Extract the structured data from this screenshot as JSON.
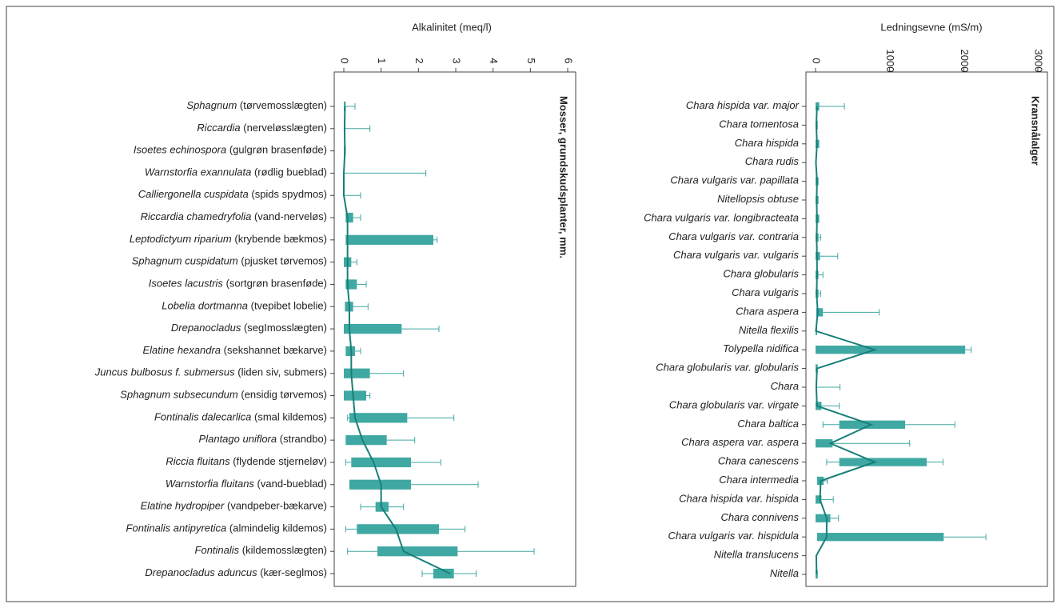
{
  "chart_data": [
    {
      "type": "range_bar",
      "axis_label": "Alkalinitet (meq/l)",
      "panel_label": "Mosser, grundskudsplanter, mm.",
      "color": "#3fa8a2",
      "line_color": "#17807a",
      "xlim": [
        0,
        6
      ],
      "xticks": [
        0,
        1,
        2,
        3,
        4,
        5,
        6
      ],
      "categories": [
        "Sphagnum",
        "Riccardia",
        "Isoetes echinospora",
        "Warnstorfia exannulata",
        "Calliergonella cuspidata",
        "Riccardia chamedryfolia",
        "Leptodictyum riparium",
        "Sphagnum cuspidatum",
        "Isoetes lacustris",
        "Lobelia dortmanna",
        "Drepanocladus",
        "Elatine hexandra",
        "Juncus bulbosus f. submersus",
        "Sphagnum subsecundum",
        "Fontinalis dalecarlica",
        "Plantago uniflora",
        "Riccia fluitans",
        "Warnstorfia fluitans",
        "Elatine hydropiper",
        "Fontinalis antipyretica",
        "Fontinalis",
        "Drepanocladus aduncus"
      ],
      "category_notes": [
        "(tørvemosslægten)",
        "(nerveløsslægten)",
        "(gulgrøn brasenføde)",
        "(rødlig bueblad)",
        "(spids spydmos)",
        "(vand-nerveløs)",
        "(krybende bækmos)",
        "(pjusket tørvemos)",
        "(sortgrøn brasenføde)",
        "(tvepibet lobelie)",
        "(segImosslægten)",
        "(sekshannet bækarve)",
        "(liden siv, submers)",
        "(ensidig tørvemos)",
        "(smal kildemos)",
        "(strandbo)",
        "(flydende stjerneløv)",
        "(vand-bueblad)",
        "(vandpeber-bækarve)",
        "(almindelig kildemos)",
        "(kildemosslægten)",
        "(kær-seglmos)"
      ],
      "box_low": [
        0,
        null,
        0,
        null,
        null,
        0.05,
        0.05,
        0,
        0.05,
        0.03,
        0,
        0.05,
        0,
        0,
        0.15,
        0.05,
        0.2,
        0.15,
        0.85,
        0.35,
        0.9,
        2.4
      ],
      "box_high": [
        0.05,
        null,
        0.05,
        null,
        null,
        0.25,
        2.4,
        0.2,
        0.35,
        0.25,
        1.55,
        0.3,
        0.7,
        0.6,
        1.7,
        1.15,
        1.8,
        1.8,
        1.2,
        2.55,
        3.05,
        2.95
      ],
      "median": [
        0.03,
        0.02,
        0.03,
        0,
        0,
        0.1,
        0.1,
        0.1,
        0.1,
        0.15,
        0.15,
        0.2,
        0.2,
        0.25,
        0.3,
        0.5,
        0.8,
        1.0,
        1.0,
        1.4,
        1.6,
        2.85
      ],
      "whisker_low": [
        null,
        null,
        null,
        null,
        null,
        null,
        null,
        null,
        null,
        null,
        null,
        null,
        null,
        null,
        0.1,
        null,
        0.05,
        null,
        0.45,
        0.05,
        0.1,
        2.1
      ],
      "whisker_high": [
        0.3,
        0.7,
        null,
        2.2,
        0.45,
        0.45,
        2.5,
        0.35,
        0.6,
        0.65,
        2.55,
        0.45,
        1.6,
        0.7,
        2.95,
        1.9,
        2.6,
        3.6,
        1.6,
        3.25,
        5.1,
        3.55
      ]
    },
    {
      "type": "range_bar",
      "axis_label": "Ledningsevne (mS/m)",
      "panel_label": "Kransnålalger",
      "color": "#3fa8a2",
      "line_color": "#17807a",
      "xlim": [
        0,
        3000
      ],
      "xticks": [
        0,
        1000,
        2000,
        3000
      ],
      "categories": [
        "Chara hispida var. major",
        "Chara tomentosa",
        "Chara hispida",
        "Chara rudis",
        "Chara vulgaris var. papillata",
        "Nitellopsis obtuse",
        "Chara vulgaris var. longibracteata",
        "Chara vulgaris var. contraria",
        "Chara vulgaris var. vulgaris",
        "Chara globularis",
        "Chara vulgaris",
        "Chara aspera",
        "Nitella flexilis",
        "Tolypella nidifica",
        "Chara globularis var. globularis",
        "Chara",
        "Chara globularis var. virgate",
        "Chara baltica",
        "Chara aspera var. aspera",
        "Chara canescens",
        "Chara intermedia",
        "Chara hispida var. hispida",
        "Chara connivens",
        "Chara vulgaris var. hispidula",
        "Nitella translucens",
        "Nitella"
      ],
      "box_low": [
        0,
        0,
        0,
        null,
        0,
        0,
        0,
        0,
        0,
        0,
        0,
        10,
        0,
        0,
        0,
        null,
        0,
        320,
        0,
        320,
        20,
        0,
        0,
        20,
        null,
        0
      ],
      "box_high": [
        50,
        30,
        50,
        null,
        40,
        40,
        50,
        40,
        60,
        40,
        40,
        100,
        20,
        2020,
        30,
        null,
        80,
        1210,
        230,
        1500,
        110,
        80,
        200,
        1730,
        null,
        30
      ],
      "median": [
        20,
        10,
        20,
        5,
        20,
        15,
        20,
        15,
        20,
        20,
        15,
        30,
        5,
        800,
        20,
        10,
        20,
        750,
        200,
        800,
        70,
        60,
        150,
        150,
        10,
        15
      ],
      "whisker_low": [
        null,
        null,
        null,
        null,
        null,
        null,
        null,
        null,
        null,
        null,
        null,
        null,
        null,
        null,
        null,
        null,
        null,
        100,
        null,
        150,
        null,
        null,
        null,
        null,
        null,
        null
      ],
      "whisker_high": [
        390,
        null,
        null,
        null,
        null,
        null,
        null,
        70,
        300,
        100,
        70,
        860,
        null,
        2100,
        null,
        330,
        320,
        1880,
        1270,
        1720,
        160,
        240,
        310,
        2300,
        null,
        null
      ]
    }
  ]
}
